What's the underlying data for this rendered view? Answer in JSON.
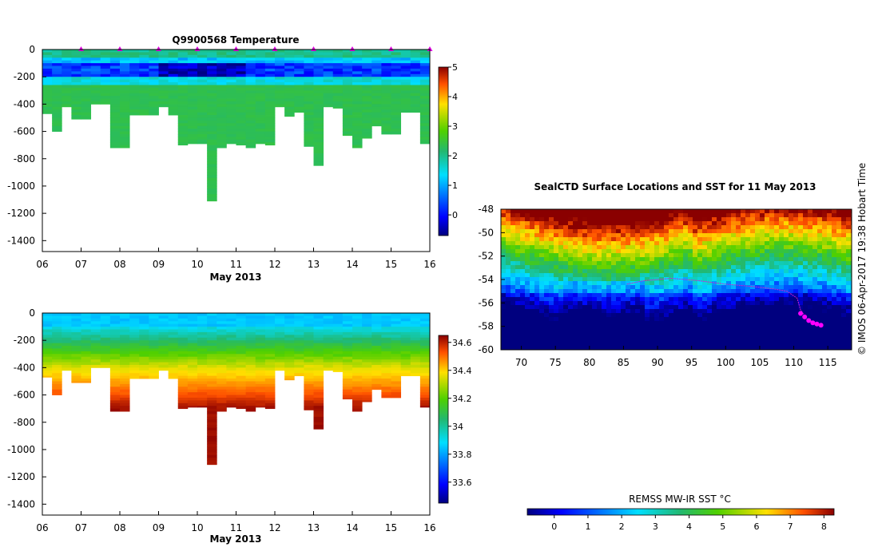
{
  "chart_data": [
    {
      "type": "heatmap",
      "title": "Q9900568  Temperature",
      "xlabel": "May 2013",
      "xlim": [
        6,
        16
      ],
      "ylim": [
        -1480,
        0
      ],
      "xticks": [
        "06",
        "07",
        "08",
        "09",
        "10",
        "11",
        "12",
        "13",
        "14",
        "15",
        "16"
      ],
      "yticks": [
        "0",
        "-200",
        "-400",
        "-600",
        "-800",
        "-1000",
        "-1200",
        "-1400"
      ],
      "colorbar": {
        "min": -0.7,
        "max": 5,
        "ticks": [
          "0",
          "1",
          "2",
          "3",
          "4",
          "5"
        ]
      },
      "surface_marker_days": [
        7,
        8,
        9,
        10,
        11,
        12,
        13,
        14,
        15,
        16
      ],
      "profile_depths_m": [
        470,
        600,
        420,
        510,
        510,
        400,
        400,
        720,
        720,
        480,
        480,
        480,
        420,
        480,
        700,
        690,
        690,
        1110,
        720,
        690,
        700,
        720,
        690,
        700,
        420,
        490,
        460,
        710,
        850,
        420,
        430,
        630,
        720,
        650,
        560,
        620,
        620,
        460,
        460,
        690
      ]
    },
    {
      "type": "heatmap",
      "title": "",
      "xlabel": "May 2013",
      "xlim": [
        6,
        16
      ],
      "ylim": [
        -1480,
        0
      ],
      "xticks": [
        "06",
        "07",
        "08",
        "09",
        "10",
        "11",
        "12",
        "13",
        "14",
        "15",
        "16"
      ],
      "yticks": [
        "0",
        "-200",
        "-400",
        "-600",
        "-800",
        "-1000",
        "-1200",
        "-1400"
      ],
      "colorbar": {
        "min": 33.45,
        "max": 34.65,
        "ticks": [
          "33.6",
          "33.8",
          "34",
          "34.2",
          "34.4",
          "34.6"
        ]
      }
    },
    {
      "type": "heatmap",
      "title": "SealCTD Surface Locations and SST for 11 May 2013",
      "xlim": [
        67,
        118.5
      ],
      "ylim": [
        -60,
        -48
      ],
      "xticks": [
        "70",
        "75",
        "80",
        "85",
        "90",
        "95",
        "100",
        "105",
        "110",
        "115"
      ],
      "yticks": [
        "-48",
        "-50",
        "-52",
        "-54",
        "-56",
        "-58",
        "-60"
      ],
      "colorbar": {
        "label": "REMSS MW-IR SST °C",
        "min": -0.8,
        "max": 8.3,
        "ticks": [
          "0",
          "1",
          "2",
          "3",
          "4",
          "5",
          "6",
          "7",
          "8"
        ]
      }
    }
  ],
  "credit": "© IMOS 06-Apr-2017 19:38 Hobart Time"
}
